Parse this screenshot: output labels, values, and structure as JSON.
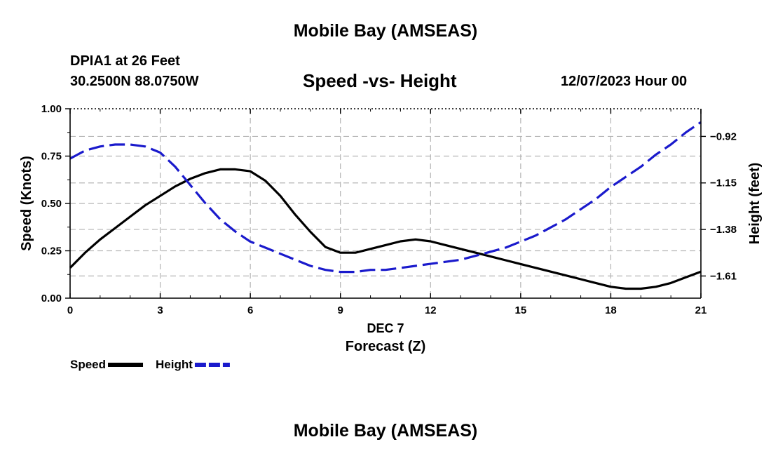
{
  "header": {
    "title": "Mobile Bay (AMSEAS)",
    "station": "DPIA1 at 26 Feet",
    "coords": "30.2500N  88.0750W",
    "datetime": "12/07/2023 Hour 00"
  },
  "footer": {
    "title": "Mobile Bay (AMSEAS)"
  },
  "chart_data": {
    "type": "line",
    "title": "Speed -vs- Height",
    "xlabel": "Forecast (Z)",
    "xsublabel": "DEC 7",
    "ylabel": "Speed (Knots)",
    "y2label": "Height (feet)",
    "xlim": [
      0,
      21
    ],
    "ylim": [
      0,
      1
    ],
    "y2lim": [
      -1.7196,
      -0.7833
    ],
    "xticks": [
      0,
      3,
      6,
      9,
      12,
      15,
      18,
      21
    ],
    "xtick_labels": [
      "0",
      "3",
      "6",
      "9",
      "12",
      "15",
      "18",
      "21"
    ],
    "yticks": [
      0,
      0.25,
      0.5,
      0.75,
      1
    ],
    "ytick_labels": [
      "0.00",
      "0.25",
      "0.50",
      "0.75",
      "1.00"
    ],
    "y2ticks": [
      -1.61,
      -1.38,
      -1.15,
      -0.92
    ],
    "y2tick_labels": [
      "−1.61",
      "−1.38",
      "−1.15",
      "−0.92"
    ],
    "grid": true,
    "legend_position": "bottom-left",
    "series": [
      {
        "name": "Speed",
        "axis": "left",
        "color": "#000000",
        "dash": "solid",
        "x": [
          0,
          0.5,
          1,
          1.5,
          2,
          2.5,
          3,
          3.5,
          4,
          4.5,
          5,
          5.5,
          6,
          6.5,
          7,
          7.5,
          8,
          8.5,
          9,
          9.5,
          10,
          10.5,
          11,
          11.5,
          12,
          12.5,
          13,
          13.5,
          14,
          14.5,
          15,
          15.5,
          16,
          16.5,
          17,
          17.5,
          18,
          18.5,
          19,
          19.5,
          20,
          20.5,
          21
        ],
        "values": [
          0.16,
          0.24,
          0.31,
          0.37,
          0.43,
          0.49,
          0.54,
          0.59,
          0.63,
          0.66,
          0.68,
          0.68,
          0.67,
          0.62,
          0.54,
          0.44,
          0.35,
          0.27,
          0.24,
          0.24,
          0.26,
          0.28,
          0.3,
          0.31,
          0.3,
          0.28,
          0.26,
          0.24,
          0.22,
          0.2,
          0.18,
          0.16,
          0.14,
          0.12,
          0.1,
          0.08,
          0.06,
          0.05,
          0.05,
          0.06,
          0.08,
          0.11,
          0.14
        ]
      },
      {
        "name": "Height",
        "axis": "right",
        "color": "#1a1acc",
        "dash": "dashed",
        "x": [
          0,
          0.5,
          1,
          1.5,
          2,
          2.5,
          3,
          3.5,
          4,
          4.5,
          5,
          5.5,
          6,
          6.5,
          7,
          7.5,
          8,
          8.5,
          9,
          9.5,
          10,
          10.5,
          11,
          11.5,
          12,
          12.5,
          13,
          13.5,
          14,
          14.5,
          15,
          15.5,
          16,
          16.5,
          17,
          17.5,
          18,
          18.5,
          19,
          19.5,
          20,
          20.5,
          21
        ],
        "values": [
          -1.03,
          -0.99,
          -0.97,
          -0.96,
          -0.96,
          -0.97,
          -1.0,
          -1.07,
          -1.16,
          -1.25,
          -1.33,
          -1.39,
          -1.44,
          -1.47,
          -1.5,
          -1.53,
          -1.56,
          -1.58,
          -1.59,
          -1.59,
          -1.58,
          -1.58,
          -1.57,
          -1.56,
          -1.55,
          -1.54,
          -1.53,
          -1.51,
          -1.49,
          -1.47,
          -1.44,
          -1.41,
          -1.37,
          -1.33,
          -1.28,
          -1.23,
          -1.17,
          -1.12,
          -1.07,
          -1.01,
          -0.96,
          -0.9,
          -0.85
        ]
      }
    ]
  }
}
